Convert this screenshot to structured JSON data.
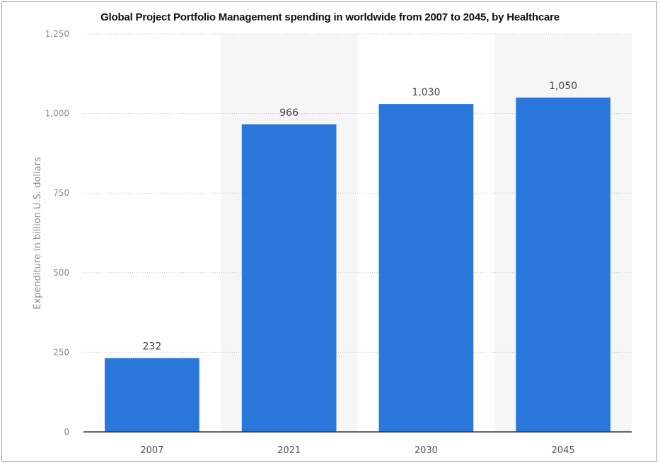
{
  "chart_data": {
    "type": "bar",
    "title": "Global Project Portfolio Management spending in worldwide from 2007 to 2045, by Healthcare",
    "xlabel": "",
    "ylabel": "Expenditure in billion U.S. dollars",
    "categories": [
      "2007",
      "2021",
      "2030",
      "2045"
    ],
    "values": [
      232,
      966,
      1030,
      1050
    ],
    "value_labels": [
      "232",
      "966",
      "1,030",
      "1,050"
    ],
    "ylim": [
      0,
      1250
    ],
    "yticks": [
      0,
      250,
      500,
      750,
      1000,
      1250
    ],
    "ytick_labels": [
      "0",
      "250",
      "500",
      "750",
      "1,000",
      "1,250"
    ],
    "grid": true,
    "bar_color": "#2a77dc",
    "band_color": "#f6f6f6"
  }
}
